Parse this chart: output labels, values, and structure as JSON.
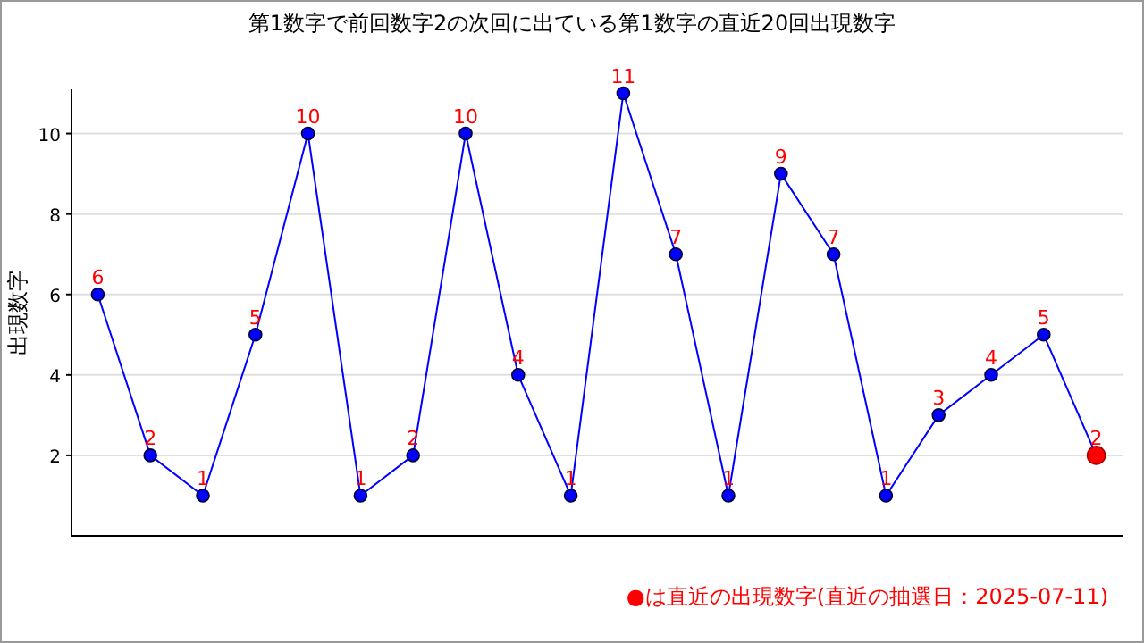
{
  "chart_data": {
    "type": "line",
    "title": "第1数字で前回数字2の次回に出ている第1数字の直近20回出現数字",
    "ylabel": "出現数字",
    "categories": [
      null,
      null,
      null,
      null,
      null,
      null,
      null,
      null,
      null,
      null,
      null,
      null,
      null,
      null,
      null,
      null,
      null,
      null,
      null,
      null
    ],
    "series": [
      {
        "color": "#0000ff",
        "values": [
          6,
          2,
          1,
          5,
          10,
          1,
          2,
          10,
          4,
          1,
          11,
          7,
          1,
          9,
          7,
          1,
          3,
          4,
          5,
          2
        ],
        "colors": [
          "#0000ff",
          "#0000ff",
          "#0000ff",
          "#0000ff",
          "#0000ff",
          "#0000ff",
          "#0000ff",
          "#0000ff",
          "#0000ff",
          "#0000ff",
          "#0000ff",
          "#0000ff",
          "#0000ff",
          "#0000ff",
          "#0000ff",
          "#0000ff",
          "#0000ff",
          "#0000ff",
          "#0000ff",
          "#ff0000"
        ]
      }
    ],
    "ylim": [
      0,
      11.1
    ],
    "yticks": [
      2,
      4,
      6,
      8,
      10
    ],
    "grid": "y",
    "marker": "circle",
    "data_labels": true,
    "annotations": [
      "●は直近の出現数字(直近の抽選日：2025-07-11)"
    ]
  }
}
